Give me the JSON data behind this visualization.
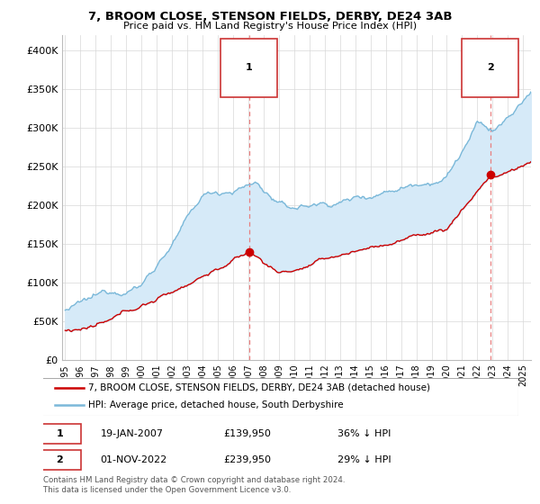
{
  "title": "7, BROOM CLOSE, STENSON FIELDS, DERBY, DE24 3AB",
  "subtitle": "Price paid vs. HM Land Registry's House Price Index (HPI)",
  "legend_line1": "7, BROOM CLOSE, STENSON FIELDS, DERBY, DE24 3AB (detached house)",
  "legend_line2": "HPI: Average price, detached house, South Derbyshire",
  "annotation1_date": "19-JAN-2007",
  "annotation1_price": "£139,950",
  "annotation1_hpi": "36% ↓ HPI",
  "annotation2_date": "01-NOV-2022",
  "annotation2_price": "£239,950",
  "annotation2_hpi": "29% ↓ HPI",
  "footnote": "Contains HM Land Registry data © Crown copyright and database right 2024.\nThis data is licensed under the Open Government Licence v3.0.",
  "hpi_color": "#7ab8d9",
  "hpi_fill_color": "#d6eaf8",
  "price_color": "#cc0000",
  "vline_color": "#e88080",
  "dot_color": "#cc0000",
  "ylim": [
    0,
    420000
  ],
  "yticks": [
    0,
    50000,
    100000,
    150000,
    200000,
    250000,
    300000,
    350000,
    400000
  ],
  "ytick_labels": [
    "£0",
    "£50K",
    "£100K",
    "£150K",
    "£200K",
    "£250K",
    "£300K",
    "£350K",
    "£400K"
  ],
  "sale1_x": 2007.05,
  "sale1_y": 139950,
  "sale2_x": 2022.84,
  "sale2_y": 239950,
  "xmin": 1994.8,
  "xmax": 2025.5
}
